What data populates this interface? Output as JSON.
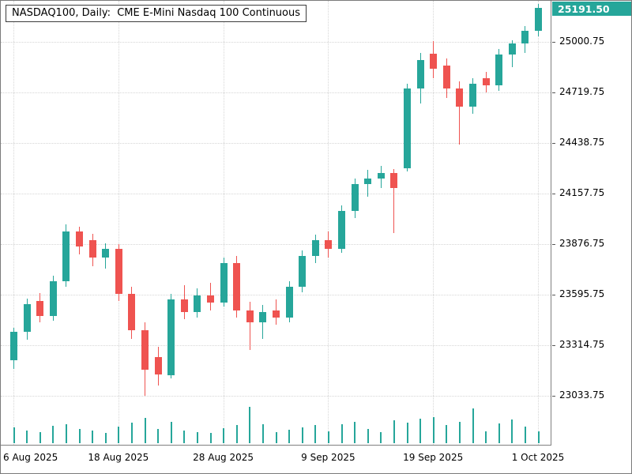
{
  "window": {
    "title": "NASDAQ100, Daily:  CME E-Mini Nasdaq 100 Continuous"
  },
  "price_tag": {
    "value": "25191.50"
  },
  "colors": {
    "bull": "#26a69a",
    "bear": "#ef5350",
    "grid": "#d6d6d6",
    "axis_text": "#000000",
    "tag_background": "#26a69a",
    "tag_text": "#ffffff",
    "background": "#ffffff",
    "border": "#808080"
  },
  "chart_data": {
    "type": "candlestick",
    "symbol": "NASDAQ100",
    "timeframe": "Daily",
    "instrument": "CME E-Mini Nasdaq 100 Continuous",
    "title": "NASDAQ100, Daily:  CME E-Mini Nasdaq 100 Continuous",
    "grid": "dotted",
    "legend_position": "none",
    "last_price": 25191.5,
    "ylim": [
      22975,
      25229
    ],
    "y_axis_labels": [
      "25000.75",
      "24719.75",
      "24438.75",
      "24157.75",
      "23876.75",
      "23595.75",
      "23314.75",
      "23033.75"
    ],
    "x_axis_labels": [
      {
        "text": "6 Aug 2025",
        "candle_index": 0
      },
      {
        "text": "18 Aug 2025",
        "candle_index": 8
      },
      {
        "text": "28 Aug 2025",
        "candle_index": 16
      },
      {
        "text": "9 Sep 2025",
        "candle_index": 24
      },
      {
        "text": "19 Sep 2025",
        "candle_index": 32
      },
      {
        "text": "1 Oct 2025",
        "candle_index": 40
      }
    ],
    "candle_columns": [
      "date",
      "open",
      "high",
      "low",
      "close",
      "volume_rel"
    ],
    "candles": [
      [
        "2025-08-06",
        23230,
        23410,
        23185,
        23390,
        20
      ],
      [
        "2025-08-07",
        23390,
        23575,
        23345,
        23545,
        16
      ],
      [
        "2025-08-08",
        23560,
        23605,
        23440,
        23475,
        14
      ],
      [
        "2025-08-11",
        23475,
        23700,
        23450,
        23670,
        22
      ],
      [
        "2025-08-12",
        23670,
        23985,
        23640,
        23945,
        24
      ],
      [
        "2025-08-13",
        23945,
        23975,
        23820,
        23865,
        18
      ],
      [
        "2025-08-14",
        23900,
        23935,
        23755,
        23800,
        16
      ],
      [
        "2025-08-15",
        23800,
        23880,
        23740,
        23850,
        13
      ],
      [
        "2025-08-18",
        23850,
        23875,
        23560,
        23600,
        21
      ],
      [
        "2025-08-19",
        23600,
        23640,
        23350,
        23400,
        26
      ],
      [
        "2025-08-20",
        23400,
        23440,
        23035,
        23180,
        32
      ],
      [
        "2025-08-21",
        23250,
        23305,
        23090,
        23150,
        18
      ],
      [
        "2025-08-22",
        23150,
        23600,
        23130,
        23570,
        27
      ],
      [
        "2025-08-25",
        23570,
        23650,
        23460,
        23500,
        16
      ],
      [
        "2025-08-26",
        23500,
        23630,
        23470,
        23590,
        14
      ],
      [
        "2025-08-27",
        23590,
        23660,
        23510,
        23550,
        13
      ],
      [
        "2025-08-28",
        23550,
        23800,
        23530,
        23770,
        19
      ],
      [
        "2025-08-29",
        23770,
        23810,
        23470,
        23510,
        23
      ],
      [
        "2025-09-01",
        23510,
        23555,
        23290,
        23440,
        46
      ],
      [
        "2025-09-02",
        23440,
        23540,
        23350,
        23500,
        24
      ],
      [
        "2025-09-03",
        23510,
        23570,
        23430,
        23470,
        14
      ],
      [
        "2025-09-04",
        23470,
        23670,
        23440,
        23640,
        17
      ],
      [
        "2025-09-05",
        23640,
        23840,
        23610,
        23810,
        20
      ],
      [
        "2025-09-08",
        23810,
        23930,
        23770,
        23900,
        23
      ],
      [
        "2025-09-09",
        23900,
        23945,
        23800,
        23850,
        15
      ],
      [
        "2025-09-10",
        23850,
        24090,
        23830,
        24060,
        24
      ],
      [
        "2025-09-11",
        24060,
        24240,
        24020,
        24210,
        27
      ],
      [
        "2025-09-12",
        24210,
        24290,
        24140,
        24240,
        18
      ],
      [
        "2025-09-15",
        24240,
        24310,
        24190,
        24270,
        14
      ],
      [
        "2025-09-16",
        24270,
        24295,
        23940,
        24190,
        29
      ],
      [
        "2025-09-17",
        24300,
        24770,
        24280,
        24740,
        26
      ],
      [
        "2025-09-18",
        24740,
        24940,
        24660,
        24900,
        31
      ],
      [
        "2025-09-19",
        24935,
        25005,
        24800,
        24850,
        33
      ],
      [
        "2025-09-22",
        24870,
        24910,
        24690,
        24740,
        23
      ],
      [
        "2025-09-23",
        24740,
        24780,
        24430,
        24640,
        27
      ],
      [
        "2025-09-24",
        24640,
        24800,
        24600,
        24770,
        44
      ],
      [
        "2025-09-25",
        24800,
        24835,
        24720,
        24760,
        15
      ],
      [
        "2025-09-26",
        24760,
        24960,
        24730,
        24930,
        25
      ],
      [
        "2025-09-29",
        24930,
        25010,
        24860,
        24990,
        30
      ],
      [
        "2025-09-30",
        24990,
        25090,
        24940,
        25060,
        21
      ],
      [
        "2025-10-01",
        25060,
        25210,
        25030,
        25191.5,
        15
      ]
    ]
  }
}
